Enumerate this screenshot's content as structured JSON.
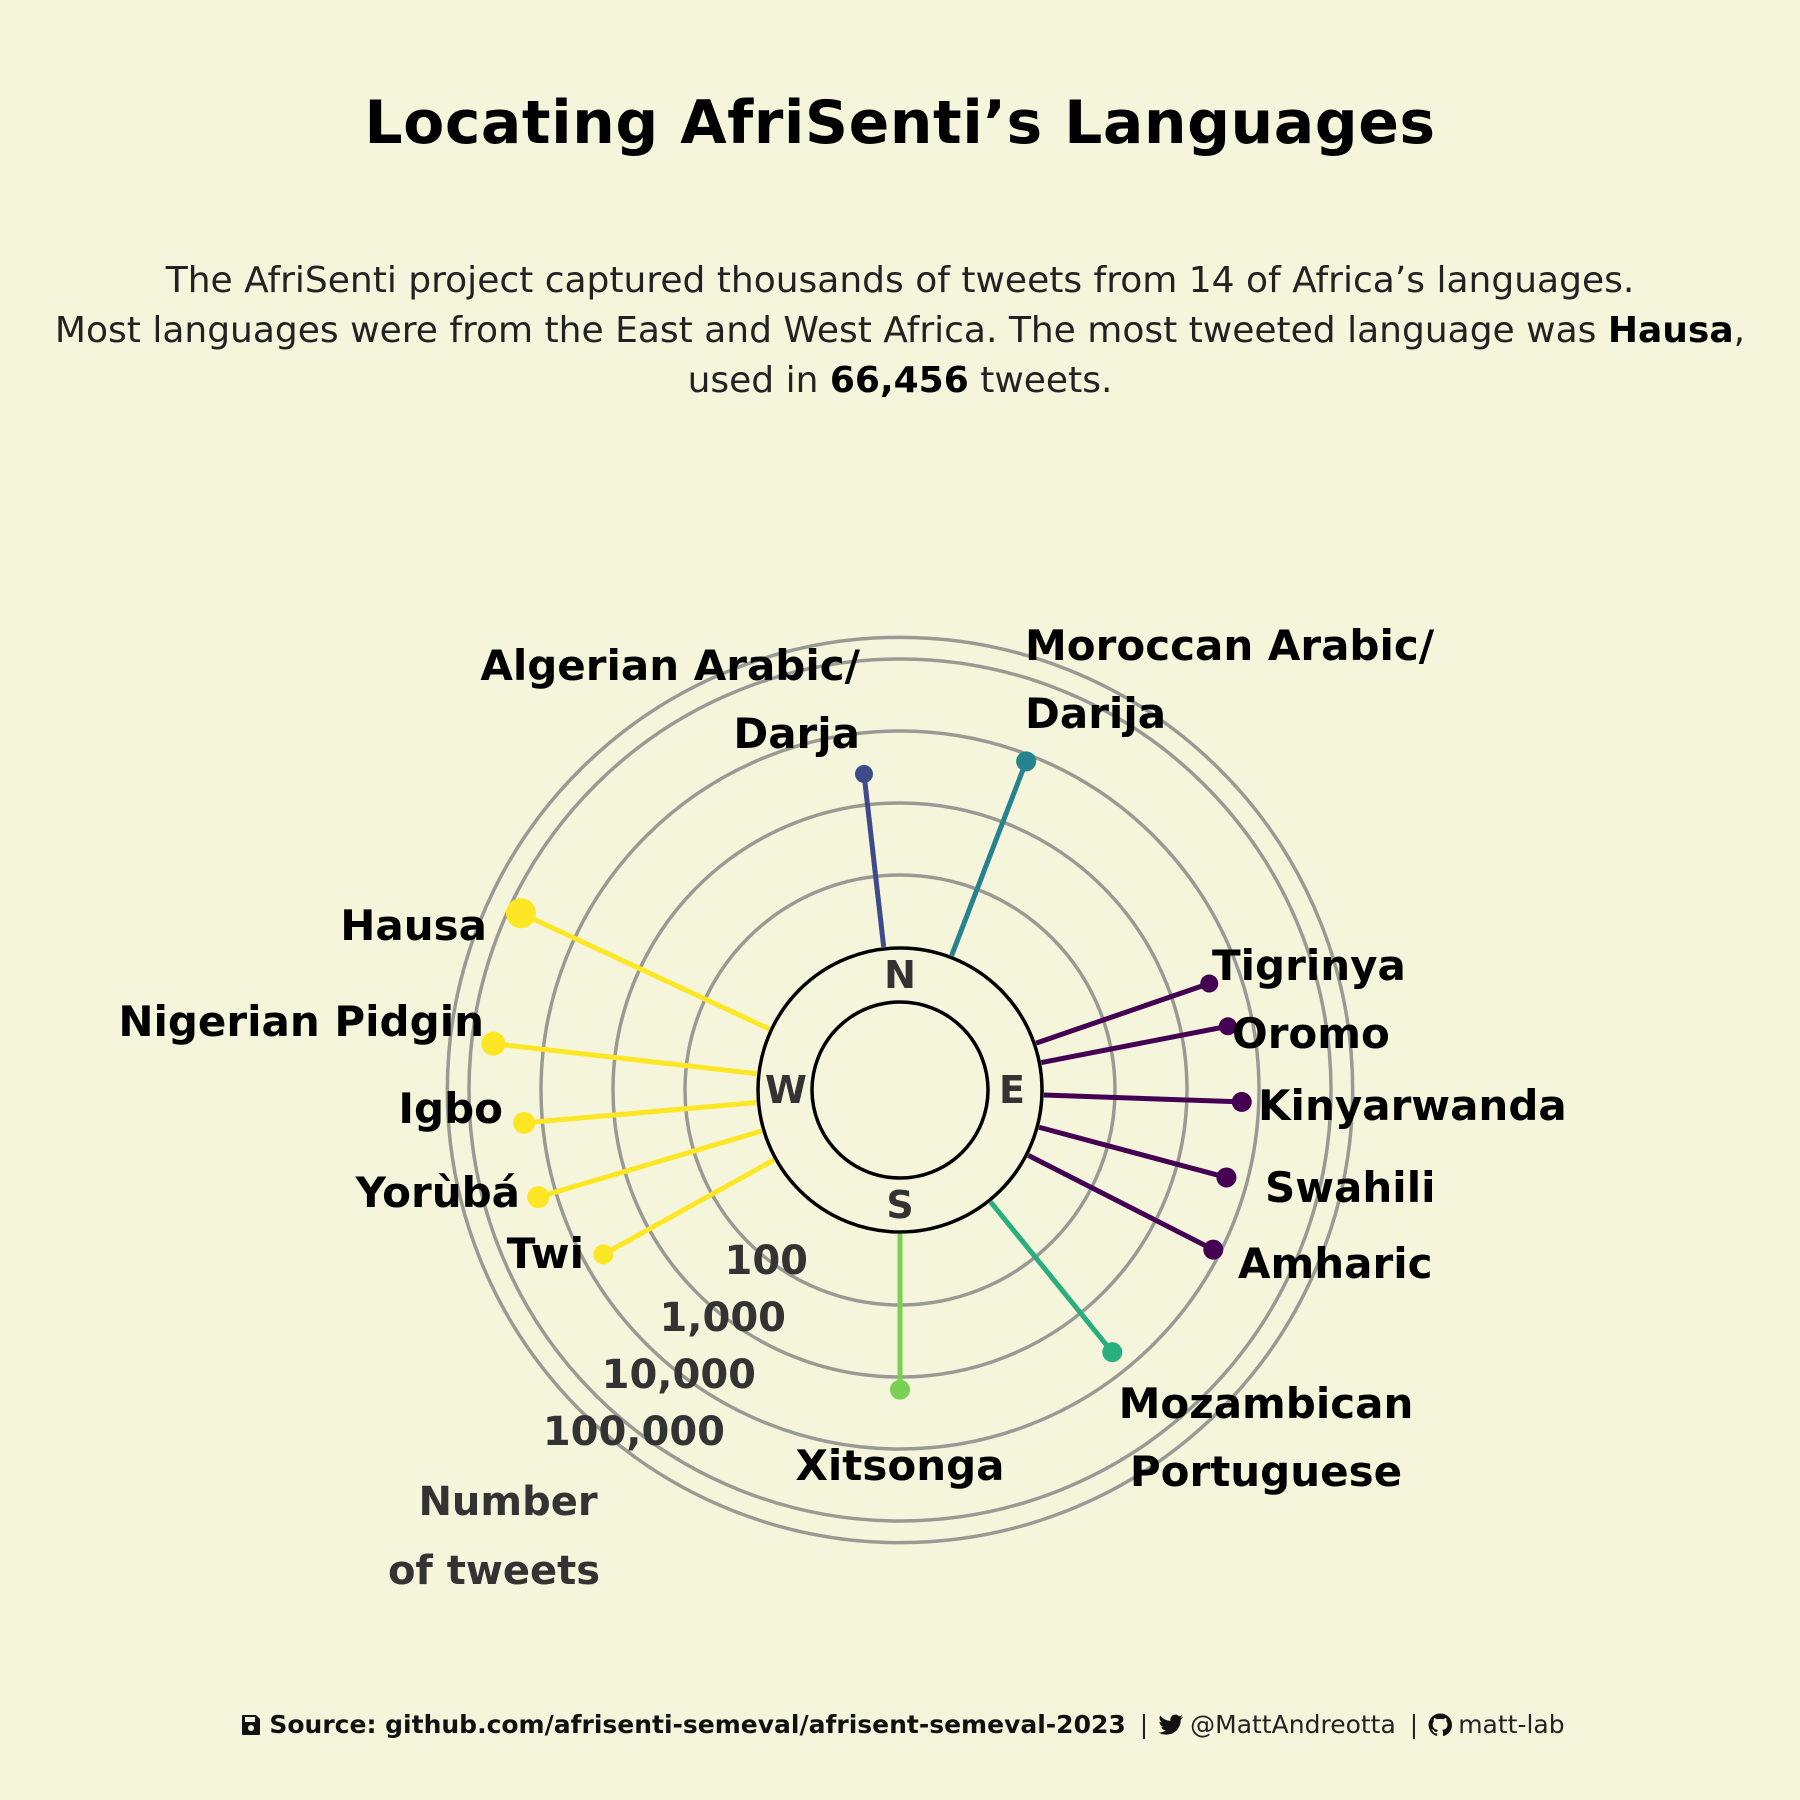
{
  "title": "Locating AfriSenti’s Languages",
  "subtitle": {
    "line1": "The AfriSenti project captured thousands of tweets from 14 of Africa’s languages.",
    "line2_pre": "Most languages were from the East and West Africa. The most tweeted language was ",
    "line2_bold": "Hausa",
    "line2_post": ",",
    "line3_pre": "used in ",
    "line3_bold": "66,456",
    "line3_post": " tweets."
  },
  "compass": {
    "n": "N",
    "e": "E",
    "s": "S",
    "w": "W"
  },
  "chart_data": {
    "type": "radial-lollipop",
    "scale": "log",
    "rlabels": [
      "100",
      "1,000",
      "10,000",
      "100,000"
    ],
    "rlim": [
      100,
      200000
    ],
    "ticks": [
      100,
      1000,
      10000,
      100000,
      200000
    ],
    "axis_title_line1": "Number",
    "axis_title_line2": "of tweets",
    "colors": {
      "Algerian": "#3e4a89",
      "Moroccan": "#26828e",
      "East": "#440154",
      "Mozambican": "#29af7f",
      "Xitsonga": "#79d151",
      "West": "#fde725"
    },
    "languages": [
      {
        "label1": "Algerian Arabic/",
        "label2": "Darja",
        "direction": "N-NW",
        "value": 2700,
        "color": "#3e4a89"
      },
      {
        "label1": "Moroccan Arabic/",
        "label2": "Darija",
        "direction": "N-NE",
        "value": 8000,
        "color": "#26828e"
      },
      {
        "label1": "Tigrinya",
        "label2": "",
        "direction": "E",
        "value": 3600,
        "color": "#440154"
      },
      {
        "label1": "Oromo",
        "label2": "",
        "direction": "E",
        "value": 4500,
        "color": "#440154"
      },
      {
        "label1": "Kinyarwanda",
        "label2": "",
        "direction": "E",
        "value": 5800,
        "color": "#440154"
      },
      {
        "label1": "Swahili",
        "label2": "",
        "direction": "E",
        "value": 5100,
        "color": "#440154"
      },
      {
        "label1": "Amharic",
        "label2": "",
        "direction": "E",
        "value": 7900,
        "color": "#440154"
      },
      {
        "label1": "Mozambican",
        "label2": "Portuguese",
        "direction": "SE",
        "value": 5000,
        "color": "#29af7f"
      },
      {
        "label1": "Xitsonga",
        "label2": "",
        "direction": "S",
        "value": 1500,
        "color": "#79d151"
      },
      {
        "label1": "Twi",
        "label2": "",
        "direction": "W",
        "value": 5300,
        "color": "#fde725"
      },
      {
        "label1": "Yorùbá",
        "label2": "",
        "direction": "W",
        "value": 18000,
        "color": "#fde725"
      },
      {
        "label1": "Igbo",
        "label2": "",
        "direction": "W",
        "value": 18000,
        "color": "#fde725"
      },
      {
        "label1": "Nigerian Pidgin",
        "label2": "",
        "direction": "W",
        "value": 50000,
        "color": "#fde725"
      },
      {
        "label1": "Hausa",
        "label2": "",
        "direction": "W",
        "value": 66456,
        "color": "#fde725"
      }
    ]
  },
  "footer": {
    "source": "Source: github.com/afrisenti-semeval/afrisent-semeval-2023",
    "sep1": "|",
    "twitter": "@MattAndreotta",
    "sep2": "|",
    "github": "matt-lab",
    "icons": [
      "save-icon",
      "twitter-icon",
      "github-icon"
    ]
  }
}
